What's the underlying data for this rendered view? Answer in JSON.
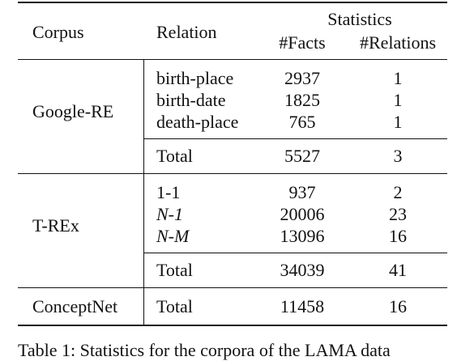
{
  "table": {
    "headers": {
      "corpus": "Corpus",
      "relation": "Relation",
      "statistics": "Statistics",
      "facts": "#Facts",
      "relations": "#Relations"
    },
    "groups": [
      {
        "corpus": "Google-RE",
        "rows": [
          {
            "relation": "birth-place",
            "facts": "2937",
            "relations": "1"
          },
          {
            "relation": "birth-date",
            "facts": "1825",
            "relations": "1"
          },
          {
            "relation": "death-place",
            "facts": "765",
            "relations": "1"
          }
        ],
        "total": {
          "label": "Total",
          "facts": "5527",
          "relations": "3"
        }
      },
      {
        "corpus": "T-REx",
        "rows": [
          {
            "relation": "1-1",
            "facts": "937",
            "relations": "2"
          },
          {
            "relation": "N-1",
            "facts": "20006",
            "relations": "23"
          },
          {
            "relation": "N-M",
            "facts": "13096",
            "relations": "16"
          }
        ],
        "total": {
          "label": "Total",
          "facts": "34039",
          "relations": "41"
        }
      },
      {
        "corpus": "ConceptNet",
        "rows": [],
        "total": {
          "label": "Total",
          "facts": "11458",
          "relations": "16"
        }
      }
    ]
  },
  "caption": "Table 1: Statistics for the corpora of the LAMA data"
}
